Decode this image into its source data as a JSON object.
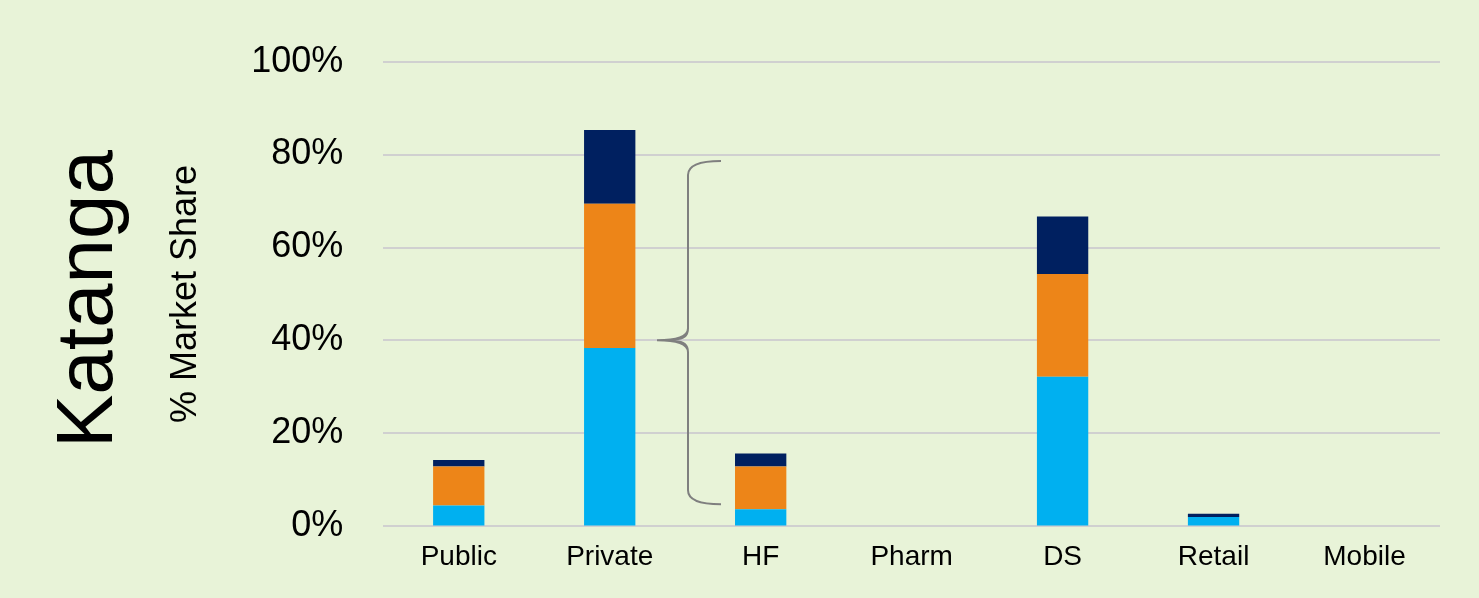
{
  "chart_data": {
    "type": "bar",
    "title": "Katanga",
    "ylabel": "% Market Share",
    "stacked": true,
    "categories": [
      "Public",
      "Private",
      "HF",
      "Pharm",
      "DS",
      "Retail",
      "Mobile"
    ],
    "series": [
      {
        "color": "#00b0f0",
        "values": [
          4.5,
          38.4,
          3.7,
          0,
          32.2,
          2.0,
          0
        ]
      },
      {
        "color": "#ed8518",
        "values": [
          8.4,
          31.0,
          9.2,
          0,
          22.1,
          0,
          0
        ]
      },
      {
        "color": "#002060",
        "values": [
          1.4,
          15.9,
          2.8,
          0,
          12.4,
          0.7,
          0
        ]
      }
    ],
    "ylim": [
      0,
      100
    ],
    "yticks": [
      {
        "value": 0,
        "label": "0%"
      },
      {
        "value": 20,
        "label": "20%"
      },
      {
        "value": 40,
        "label": "40%"
      },
      {
        "value": 60,
        "label": "60%"
      },
      {
        "value": 80,
        "label": "80%"
      },
      {
        "value": 100,
        "label": "100%"
      }
    ],
    "grid": "y",
    "legend": false
  }
}
